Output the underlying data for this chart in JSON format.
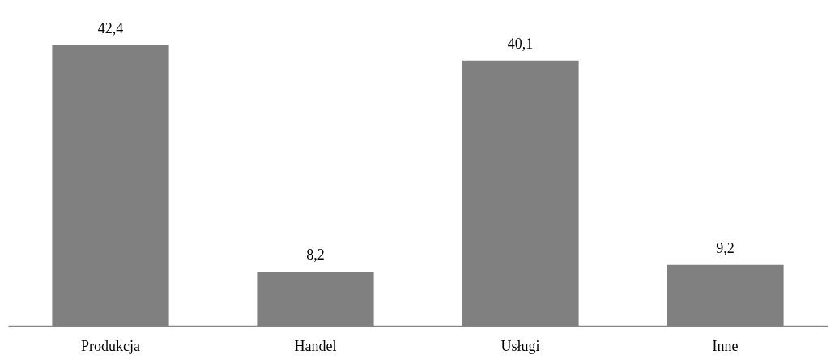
{
  "chart_data": {
    "type": "bar",
    "categories": [
      "Produkcja",
      "Handel",
      "Usługi",
      "Inne"
    ],
    "values": [
      42.4,
      8.2,
      40.1,
      9.2
    ],
    "value_labels": [
      "42,4",
      "8,2",
      "40,1",
      "9,2"
    ],
    "color": "#808080"
  }
}
